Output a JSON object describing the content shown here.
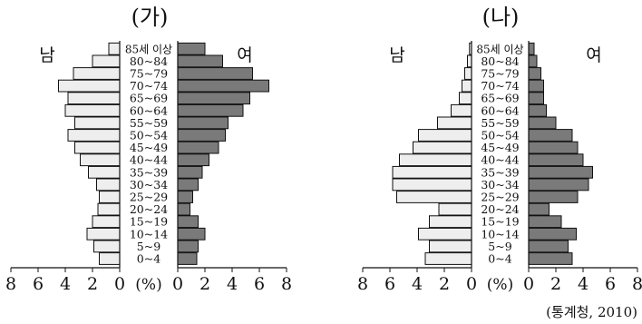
{
  "source": "(통계청, 2010)",
  "unit_label": "(%)",
  "chart_data": [
    {
      "type": "bar",
      "title": "(가)",
      "left_label": "남",
      "right_label": "여",
      "categories": [
        "0~4",
        "5~9",
        "10~14",
        "15~19",
        "20~24",
        "25~29",
        "30~34",
        "35~39",
        "40~44",
        "45~49",
        "50~54",
        "55~59",
        "60~64",
        "65~69",
        "70~74",
        "75~79",
        "80~84",
        "85세 이상"
      ],
      "xlim": [
        0,
        8
      ],
      "x_ticks": [
        "8",
        "6",
        "4",
        "2",
        "0",
        "2",
        "4",
        "6",
        "8"
      ],
      "series": [
        {
          "name": "남",
          "values": [
            1.5,
            1.9,
            2.4,
            2.0,
            1.6,
            1.5,
            1.7,
            2.3,
            2.9,
            3.3,
            3.8,
            3.3,
            4.0,
            3.8,
            4.5,
            3.4,
            2.0,
            0.8
          ]
        },
        {
          "name": "여",
          "values": [
            1.4,
            1.5,
            2.0,
            1.5,
            0.9,
            1.1,
            1.5,
            1.8,
            2.3,
            3.0,
            3.5,
            3.7,
            4.8,
            5.3,
            6.7,
            5.5,
            3.3,
            2.0
          ]
        }
      ]
    },
    {
      "type": "bar",
      "title": "(나)",
      "left_label": "남",
      "right_label": "여",
      "categories": [
        "0~4",
        "5~9",
        "10~14",
        "15~19",
        "20~24",
        "25~29",
        "30~34",
        "35~39",
        "40~44",
        "45~49",
        "50~54",
        "55~59",
        "60~64",
        "65~69",
        "70~74",
        "75~79",
        "80~84",
        "85세 이상"
      ],
      "xlim": [
        0,
        8
      ],
      "x_ticks": [
        "8",
        "6",
        "4",
        "2",
        "0",
        "2",
        "4",
        "6",
        "8"
      ],
      "series": [
        {
          "name": "남",
          "values": [
            3.4,
            3.1,
            3.9,
            3.1,
            2.4,
            5.5,
            5.8,
            5.8,
            5.3,
            4.3,
            3.9,
            2.5,
            1.5,
            0.9,
            0.7,
            0.5,
            0.3,
            0.15
          ]
        },
        {
          "name": "여",
          "values": [
            3.2,
            2.9,
            3.5,
            2.4,
            1.5,
            3.6,
            4.4,
            4.7,
            4.0,
            3.6,
            3.2,
            2.0,
            1.3,
            1.1,
            1.1,
            0.9,
            0.6,
            0.4
          ]
        }
      ]
    }
  ]
}
